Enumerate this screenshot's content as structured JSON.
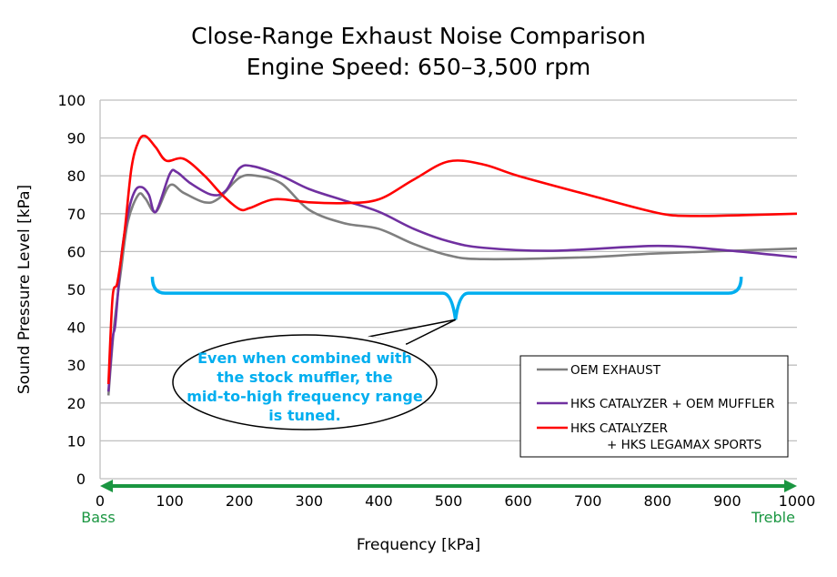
{
  "chart_data": {
    "type": "line",
    "title": [
      "Close-Range Exhaust Noise Comparison",
      "Engine Speed: 650–3,500 rpm"
    ],
    "xlabel": "Frequency [kPa]",
    "ylabel": "Sound Pressure Level [kPa]",
    "xlim": [
      0,
      1000
    ],
    "ylim": [
      0,
      100
    ],
    "xticks": [
      0,
      100,
      200,
      300,
      400,
      500,
      600,
      700,
      800,
      900,
      1000
    ],
    "yticks": [
      0,
      10,
      20,
      30,
      40,
      50,
      60,
      70,
      80,
      90,
      100
    ],
    "grid": "horizontal",
    "legend_position": "bottom-right",
    "axis_arrow": {
      "left_label": "Bass",
      "right_label": "Treble",
      "color": "#1a9641"
    },
    "annotation": {
      "text": [
        "Even when combined with",
        "the stock muffler, the",
        "mid-to-high frequency range",
        "is tuned."
      ],
      "color": "#00aeef",
      "bracket": {
        "x_start": 75,
        "x_end": 920,
        "y": 49,
        "tip_x": 510,
        "tip_y": 42
      }
    },
    "series": [
      {
        "name": "OEM EXHAUST",
        "color": "#7f7f7f",
        "points": [
          [
            12,
            22
          ],
          [
            20,
            40
          ],
          [
            30,
            55
          ],
          [
            40,
            68
          ],
          [
            55,
            75
          ],
          [
            65,
            74
          ],
          [
            80,
            70.5
          ],
          [
            100,
            77.5
          ],
          [
            120,
            75.5
          ],
          [
            150,
            73
          ],
          [
            170,
            74
          ],
          [
            200,
            79.5
          ],
          [
            225,
            80
          ],
          [
            260,
            78
          ],
          [
            300,
            71
          ],
          [
            350,
            67.5
          ],
          [
            400,
            66
          ],
          [
            450,
            62
          ],
          [
            500,
            59
          ],
          [
            550,
            58
          ],
          [
            700,
            58.5
          ],
          [
            800,
            59.5
          ],
          [
            1000,
            60.8
          ]
        ]
      },
      {
        "name": "HKS CATALYZER + OEM MUFFLER",
        "color": "#7030a0",
        "points": [
          [
            12,
            23
          ],
          [
            18,
            37
          ],
          [
            22,
            41
          ],
          [
            30,
            58
          ],
          [
            40,
            70
          ],
          [
            50,
            76
          ],
          [
            60,
            77
          ],
          [
            70,
            75
          ],
          [
            80,
            70.5
          ],
          [
            100,
            80.5
          ],
          [
            110,
            81
          ],
          [
            130,
            78
          ],
          [
            160,
            75
          ],
          [
            180,
            76
          ],
          [
            200,
            82
          ],
          [
            220,
            82.5
          ],
          [
            260,
            80
          ],
          [
            300,
            76.5
          ],
          [
            350,
            73.5
          ],
          [
            400,
            70.5
          ],
          [
            450,
            66
          ],
          [
            500,
            62.7
          ],
          [
            550,
            61
          ],
          [
            650,
            60.2
          ],
          [
            800,
            61.5
          ],
          [
            900,
            60.3
          ],
          [
            1000,
            58.5
          ]
        ]
      },
      {
        "name": "HKS CATALYZER",
        "name2": "+ HKS LEGAMAX SPORTS",
        "color": "#ff0000",
        "points": [
          [
            12,
            25
          ],
          [
            18,
            48
          ],
          [
            25,
            52
          ],
          [
            35,
            65
          ],
          [
            45,
            82
          ],
          [
            55,
            89
          ],
          [
            65,
            90.5
          ],
          [
            80,
            87.5
          ],
          [
            95,
            84
          ],
          [
            120,
            84.5
          ],
          [
            150,
            80
          ],
          [
            175,
            75
          ],
          [
            200,
            71.2
          ],
          [
            215,
            71.5
          ],
          [
            250,
            73.8
          ],
          [
            300,
            73
          ],
          [
            350,
            72.8
          ],
          [
            400,
            73.8
          ],
          [
            450,
            79
          ],
          [
            500,
            83.8
          ],
          [
            550,
            83
          ],
          [
            600,
            80
          ],
          [
            700,
            75
          ],
          [
            800,
            70.2
          ],
          [
            850,
            69.4
          ],
          [
            920,
            69.6
          ],
          [
            1000,
            70
          ]
        ]
      }
    ]
  }
}
